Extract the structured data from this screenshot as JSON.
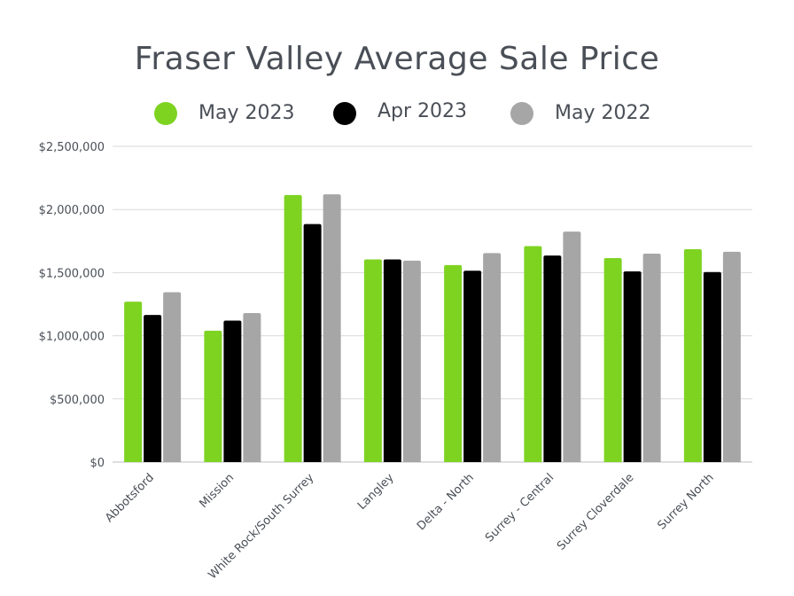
{
  "chart_data": {
    "type": "bar",
    "title": "Fraser Valley Average Sale Price",
    "xlabel": "",
    "ylabel": "",
    "ylim": [
      0,
      2500000
    ],
    "yticks": [
      0,
      500000,
      1000000,
      1500000,
      2000000,
      2500000
    ],
    "ytick_labels": [
      "$0",
      "$500,000",
      "$1,000,000",
      "$1,500,000",
      "$2,000,000",
      "$2,500,000"
    ],
    "grid": true,
    "legend_position": "top-center",
    "categories": [
      "Abbotsford",
      "Mission",
      "White Rock/South Surrey",
      "Langley",
      "Delta - North",
      "Surrey - Central",
      "Surrey Cloverdale",
      "Surrey North"
    ],
    "series": [
      {
        "name": "May 2023",
        "color": "#7ed321",
        "values": [
          1270000,
          1040000,
          2115000,
          1605000,
          1560000,
          1710000,
          1615000,
          1685000
        ]
      },
      {
        "name": "Apr 2023",
        "color": "#000000",
        "values": [
          1165000,
          1120000,
          1885000,
          1605000,
          1515000,
          1635000,
          1510000,
          1505000
        ]
      },
      {
        "name": "May 2022",
        "color": "#a6a6a6",
        "values": [
          1345000,
          1180000,
          2120000,
          1595000,
          1655000,
          1825000,
          1650000,
          1665000
        ]
      }
    ]
  }
}
